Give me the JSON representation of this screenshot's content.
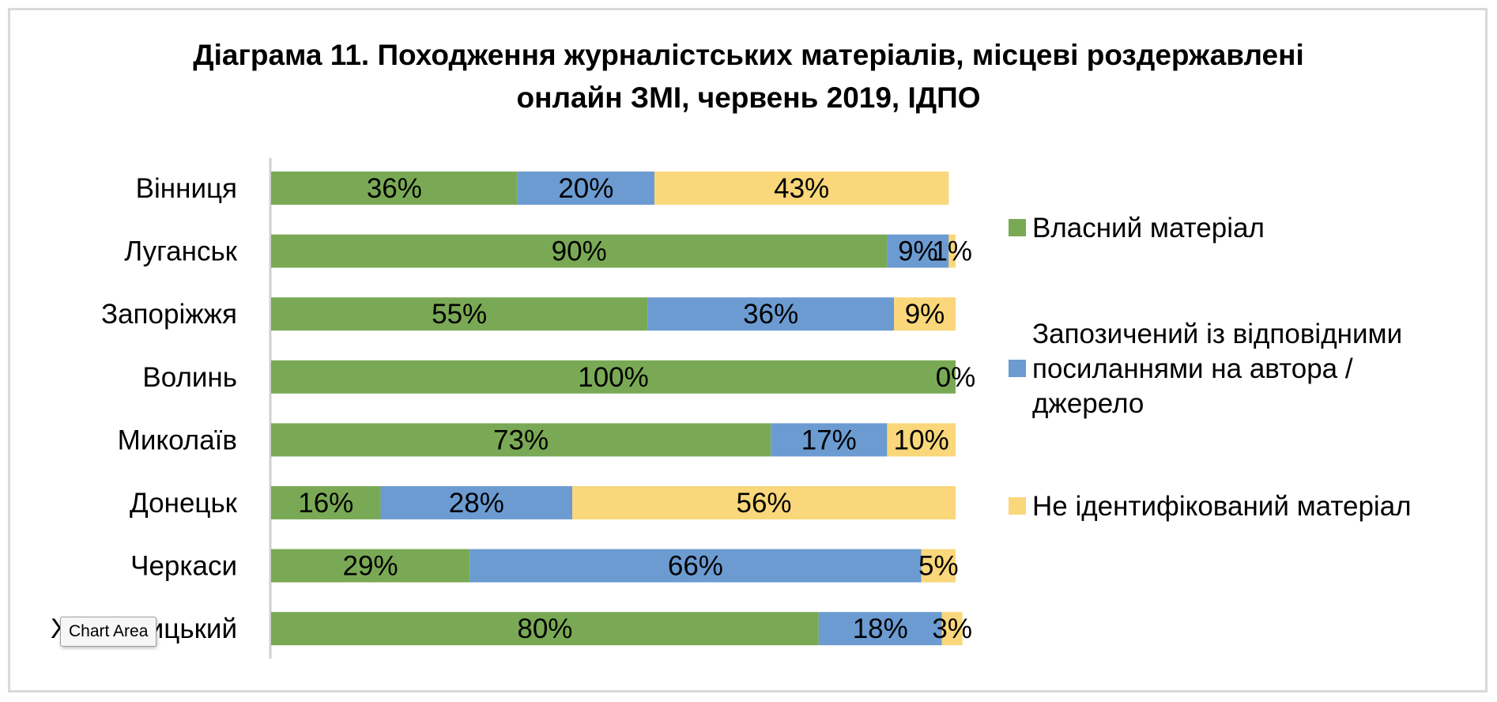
{
  "chart_data": {
    "type": "bar",
    "orientation": "horizontal",
    "stacked": "100%",
    "title_lines": [
      "Діаграма 11. Походження журналістських матеріалів, місцеві роздержавлені",
      "онлайн ЗМІ, червень 2019, ІДПО"
    ],
    "categories": [
      "Вінниця",
      "Луганськ",
      "Запоріжжя",
      "Волинь",
      "Миколаїв",
      "Донецьк",
      "Черкаси",
      "Хмельницький"
    ],
    "series": [
      {
        "name": "Власний матеріал",
        "color": "#7aa955",
        "values": [
          36,
          90,
          55,
          100,
          73,
          16,
          29,
          80
        ],
        "labels": [
          "36%",
          "90%",
          "55%",
          "100%",
          "73%",
          "16%",
          "29%",
          "80%"
        ]
      },
      {
        "name": "Запозичений із відповідними посиланнями на автора / джерело",
        "legend_lines": [
          "Запозичений із відповідними",
          "посиланнями на автора /",
          "джерело"
        ],
        "color": "#6b9bd1",
        "values": [
          20,
          9,
          36,
          0,
          17,
          28,
          66,
          18
        ],
        "labels": [
          "20%",
          "9%",
          "36%",
          "",
          "17%",
          "28%",
          "66%",
          "18%"
        ]
      },
      {
        "name": "Не ідентифікований матеріал",
        "color": "#f9d77a",
        "values": [
          43,
          1,
          9,
          0,
          10,
          56,
          5,
          3
        ],
        "labels": [
          "43%",
          "1%",
          "9%",
          "0%",
          "10%",
          "56%",
          "5%",
          "3%"
        ]
      }
    ],
    "xlim": [
      0,
      100
    ],
    "grid": false,
    "legend_position": "right"
  },
  "tooltip": {
    "text": "Chart Area"
  }
}
